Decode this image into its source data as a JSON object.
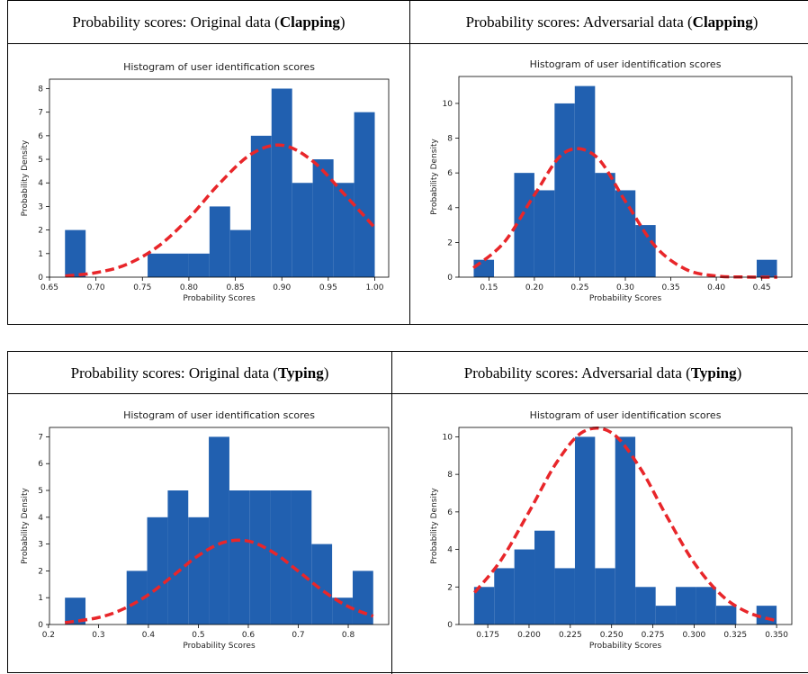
{
  "chart_data": [
    {
      "type": "histogram",
      "heading": [
        "Probability scores: Original data (",
        "Clapping",
        ")"
      ],
      "title": "Histogram of user identification scores",
      "xlabel": "Probability Scores",
      "ylabel": "Probability Density",
      "bins": [
        0.6667,
        0.6889,
        0.7111,
        0.7333,
        0.7556,
        0.7778,
        0.8,
        0.8222,
        0.8444,
        0.8667,
        0.8889,
        0.9111,
        0.9333,
        0.9556,
        0.9778,
        1.0
      ],
      "counts": [
        2,
        0,
        0,
        0,
        1,
        1,
        1,
        3,
        2,
        6,
        8,
        4,
        5,
        4,
        7
      ],
      "color": "#2160b0",
      "fit": {
        "color": "#e8262a",
        "x": [
          0.667,
          0.7,
          0.733,
          0.767,
          0.8,
          0.833,
          0.867,
          0.9,
          0.933,
          0.967,
          1.0
        ],
        "values": [
          0.05,
          0.19,
          0.54,
          1.31,
          2.51,
          3.98,
          5.22,
          5.6,
          4.93,
          3.53,
          2.1
        ]
      },
      "xlim": [
        0.65,
        1.015
      ],
      "xticks": [
        0.65,
        {
          "value": 0.7,
          "label": "0.70"
        },
        0.75,
        {
          "value": 0.8,
          "label": "0.80"
        },
        0.85,
        {
          "value": 0.9,
          "label": "0.90"
        },
        0.95,
        {
          "value": 1.0,
          "label": "1.00"
        }
      ],
      "ylim": [
        0,
        8.4
      ],
      "yticks": [
        0,
        1,
        2,
        3,
        4,
        5,
        6,
        7,
        8
      ]
    },
    {
      "type": "histogram",
      "heading": [
        "Probability scores: Adversarial data (",
        "Clapping",
        ")"
      ],
      "title": "Histogram of user identification scores",
      "xlabel": "Probability Scores",
      "ylabel": "Probability Density",
      "bins": [
        0.1333,
        0.1556,
        0.1778,
        0.2,
        0.2222,
        0.2444,
        0.2667,
        0.2889,
        0.3111,
        0.3333,
        0.3556,
        0.3778,
        0.4,
        0.4222,
        0.4444,
        0.4667
      ],
      "counts": [
        1,
        0,
        6,
        5,
        10,
        11,
        6,
        5,
        3,
        0,
        0,
        0,
        0,
        0,
        1
      ],
      "color": "#2160b0",
      "fit": {
        "color": "#e8262a",
        "x": [
          0.133,
          0.167,
          0.2,
          0.233,
          0.267,
          0.3,
          0.333,
          0.367,
          0.4,
          0.433,
          0.467
        ],
        "values": [
          0.53,
          2.02,
          4.73,
          7.17,
          6.98,
          4.37,
          1.77,
          0.44,
          0.07,
          0.01,
          0
        ]
      },
      "xlim": [
        0.117,
        0.483
      ],
      "xticks": [
        0.15,
        {
          "value": 0.2,
          "label": "0.20"
        },
        0.25,
        {
          "value": 0.3,
          "label": "0.30"
        },
        0.35,
        {
          "value": 0.4,
          "label": "0.40"
        },
        0.45
      ],
      "ylim": [
        0,
        11.55
      ],
      "yticks": [
        0,
        2,
        4,
        6,
        8,
        10
      ]
    },
    {
      "type": "histogram",
      "heading": [
        "Probability scores: Original data (",
        "Typing",
        ")"
      ],
      "title": "Histogram of user identification scores",
      "xlabel": "Probability Scores",
      "ylabel": "Probability Density",
      "bins": [
        0.233,
        0.2741,
        0.3153,
        0.3564,
        0.3975,
        0.4387,
        0.4798,
        0.5209,
        0.5621,
        0.6032,
        0.6443,
        0.6855,
        0.7266,
        0.7677,
        0.8089,
        0.85
      ],
      "counts": [
        1,
        0,
        0,
        2,
        4,
        5,
        4,
        7,
        5,
        5,
        5,
        5,
        3,
        1,
        2
      ],
      "color": "#2160b0",
      "fit": {
        "color": "#e8262a",
        "x": [
          0.233,
          0.3,
          0.35,
          0.4,
          0.45,
          0.5,
          0.55,
          0.6,
          0.65,
          0.7,
          0.75,
          0.8,
          0.85
        ],
        "values": [
          0.07,
          0.26,
          0.58,
          1.11,
          1.83,
          2.57,
          3.06,
          3.11,
          2.69,
          1.99,
          1.25,
          0.67,
          0.31
        ]
      },
      "xlim": [
        0.202,
        0.881
      ],
      "xticks": [
        0.2,
        0.3,
        0.4,
        0.5,
        0.6,
        0.7,
        0.8
      ],
      "ylim": [
        0,
        7.35
      ],
      "yticks": [
        0,
        1,
        2,
        3,
        4,
        5,
        6,
        7
      ]
    },
    {
      "type": "histogram",
      "heading": [
        "Probability scores: Adversarial data (",
        "Typing",
        ")"
      ],
      "title": "Histogram of user identification scores",
      "xlabel": "Probability Scores",
      "ylabel": "Probability Density",
      "bins": [
        0.1667,
        0.1789,
        0.1911,
        0.2033,
        0.2156,
        0.2278,
        0.24,
        0.2522,
        0.2644,
        0.2767,
        0.2889,
        0.3011,
        0.3133,
        0.3256,
        0.3378,
        0.35
      ],
      "counts": [
        2,
        3,
        4,
        5,
        3,
        10,
        3,
        10,
        2,
        1,
        2,
        2,
        1,
        0,
        1
      ],
      "color": "#2160b0",
      "fit": {
        "color": "#e8262a",
        "x": [
          0.167,
          0.183,
          0.2,
          0.217,
          0.233,
          0.25,
          0.267,
          0.283,
          0.3,
          0.317,
          0.333,
          0.35
        ],
        "values": [
          1.7,
          3.43,
          6.0,
          8.67,
          10.28,
          10.22,
          8.38,
          5.83,
          3.29,
          1.53,
          0.63,
          0.2
        ]
      },
      "xlim": [
        0.1575,
        0.3592
      ],
      "xticks": [
        0.175,
        {
          "value": 0.2,
          "label": "0.200"
        },
        0.225,
        {
          "value": 0.25,
          "label": "0.250"
        },
        0.275,
        {
          "value": 0.3,
          "label": "0.300"
        },
        0.325,
        {
          "value": 0.35,
          "label": "0.350"
        }
      ],
      "ylim": [
        0,
        10.5
      ],
      "yticks": [
        0,
        2,
        4,
        6,
        8,
        10
      ]
    }
  ]
}
